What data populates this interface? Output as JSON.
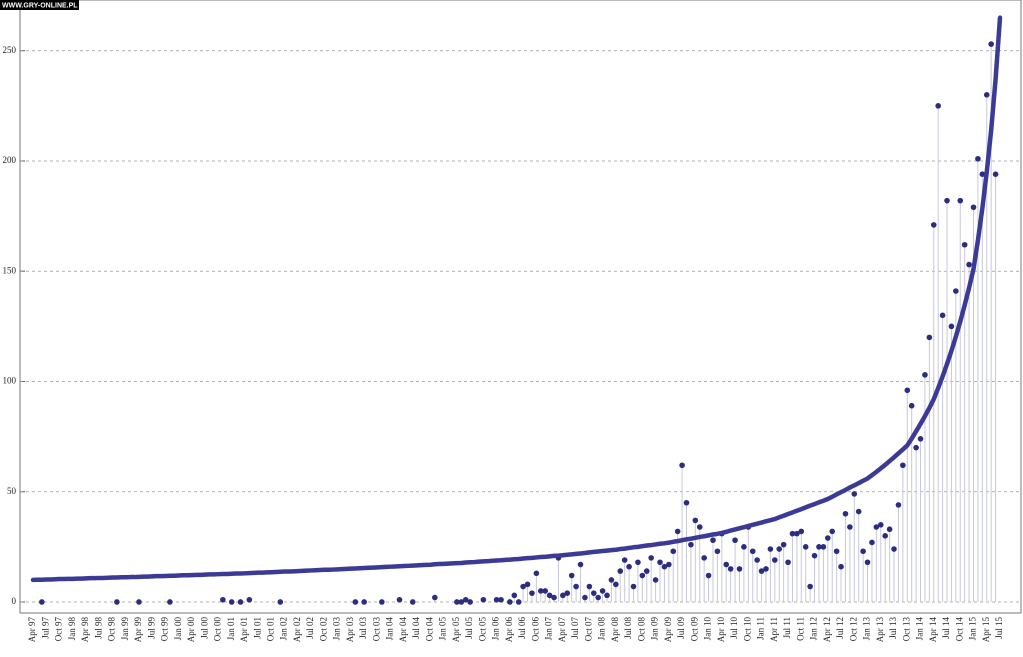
{
  "watermark": "WWW.GRY-ONLINE.PL",
  "chart_data": {
    "type": "line",
    "categories": [
      "Apr 97",
      null,
      null,
      "Jul 97",
      null,
      null,
      "Oct 97",
      null,
      null,
      "Jan 98",
      null,
      null,
      "Apr 98",
      null,
      null,
      "Jul 98",
      null,
      null,
      "Oct 98",
      null,
      null,
      "Jan 99",
      null,
      null,
      "Apr 99",
      null,
      null,
      "Jul 99",
      null,
      null,
      "Oct 99",
      null,
      null,
      "Jan 00",
      null,
      null,
      "Apr 00",
      null,
      null,
      "Jul 00",
      null,
      null,
      "Oct 00",
      null,
      null,
      "Jan 01",
      null,
      null,
      "Apr 01",
      null,
      null,
      "Jul 01",
      null,
      null,
      "Oct 01",
      null,
      null,
      "Jan 02",
      null,
      null,
      "Apr 02",
      null,
      null,
      "Jul 02",
      null,
      null,
      "Oct 02",
      null,
      null,
      "Jan 03",
      null,
      null,
      "Apr 03",
      null,
      null,
      "Jul 03",
      null,
      null,
      "Oct 03",
      null,
      null,
      "Jan 04",
      null,
      null,
      "Apr 04",
      null,
      null,
      "Jul 04",
      null,
      null,
      "Oct 04",
      null,
      null,
      "Jan 05",
      null,
      null,
      "Apr 05",
      null,
      null,
      "Jul 05",
      null,
      null,
      "Oct 05",
      null,
      null,
      "Jan 06",
      null,
      null,
      "Apr 06",
      null,
      null,
      "Jul 06",
      null,
      null,
      "Oct 06",
      null,
      null,
      "Jan 07",
      null,
      null,
      "Apr 07",
      null,
      null,
      "Jul 07",
      null,
      null,
      "Oct 07",
      null,
      null,
      "Jan 08",
      null,
      null,
      "Apr 08",
      null,
      null,
      "Jul 08",
      null,
      null,
      "Oct 08",
      null,
      null,
      "Jan 09",
      null,
      null,
      "Apr 09",
      null,
      null,
      "Jul 09",
      null,
      null,
      "Oct 09",
      null,
      null,
      "Jan 10",
      null,
      null,
      "Apr 10",
      null,
      null,
      "Jul 10",
      null,
      null,
      "Oct 10",
      null,
      null,
      "Jan 11",
      null,
      null,
      "Apr 11",
      null,
      null,
      "Jul 11",
      null,
      null,
      "Oct 11",
      null,
      null,
      "Jan 12",
      null,
      null,
      "Apr 12",
      null,
      null,
      "Jul 12",
      null,
      null,
      "Oct 12",
      null,
      null,
      "Jan 13",
      null,
      null,
      "Apr 13",
      null,
      null,
      "Jul 13",
      null,
      null,
      "Oct 13",
      null,
      null,
      "Jan 14",
      null,
      null,
      "Apr 14",
      null,
      null,
      "Jul 14",
      null,
      null,
      "Oct 14",
      null,
      null,
      "Jan 15",
      null,
      null,
      "Apr 15",
      null,
      null,
      "Jul 15"
    ],
    "series": [
      {
        "type": "stem",
        "color": "#2d2d7f",
        "values": [
          null,
          null,
          0,
          null,
          null,
          null,
          null,
          null,
          null,
          null,
          null,
          null,
          null,
          null,
          null,
          null,
          null,
          null,
          null,
          0,
          null,
          null,
          null,
          null,
          0,
          null,
          null,
          null,
          null,
          null,
          null,
          0,
          null,
          null,
          null,
          null,
          null,
          null,
          null,
          null,
          null,
          null,
          null,
          1,
          null,
          0,
          null,
          0,
          null,
          1,
          null,
          null,
          null,
          null,
          null,
          null,
          0,
          null,
          null,
          null,
          null,
          null,
          null,
          null,
          null,
          null,
          null,
          null,
          null,
          null,
          null,
          null,
          null,
          0,
          null,
          0,
          null,
          null,
          null,
          0,
          null,
          null,
          null,
          1,
          null,
          null,
          0,
          null,
          null,
          null,
          null,
          2,
          null,
          null,
          null,
          null,
          0,
          0,
          1,
          0,
          null,
          null,
          1,
          null,
          null,
          1,
          1,
          null,
          0,
          3,
          0,
          7,
          8,
          4,
          13,
          5,
          5,
          3,
          2,
          20,
          3,
          4,
          12,
          7,
          17,
          2,
          7,
          4,
          2,
          5,
          3,
          10,
          8,
          14,
          19,
          16,
          7,
          18,
          12,
          14,
          20,
          10,
          18,
          16,
          17,
          23,
          32,
          62,
          45,
          26,
          37,
          34,
          20,
          12,
          28,
          23,
          31,
          17,
          15,
          28,
          15,
          25,
          34,
          23,
          19,
          14,
          15,
          24,
          19,
          24,
          26,
          18,
          31,
          31,
          32,
          25,
          7,
          21,
          25,
          25,
          29,
          32,
          23,
          16,
          40,
          34,
          49,
          41,
          23,
          18,
          27,
          34,
          35,
          30,
          33,
          24,
          44,
          62,
          96,
          89,
          70,
          74,
          103,
          120,
          171,
          225,
          130,
          182,
          125,
          141,
          182,
          162,
          153,
          179,
          201,
          194,
          230,
          253,
          194,
          null
        ]
      },
      {
        "type": "line",
        "color": "#3b3b97",
        "values": [
          10.0,
          10.1,
          10.1,
          10.2,
          10.2,
          10.3,
          10.4,
          10.4,
          10.5,
          10.5,
          10.6,
          10.6,
          10.7,
          10.8,
          10.8,
          10.9,
          10.9,
          11.0,
          11.1,
          11.1,
          11.2,
          11.2,
          11.3,
          11.3,
          11.4,
          11.5,
          11.5,
          11.6,
          11.7,
          11.7,
          11.8,
          11.9,
          11.9,
          12.0,
          12.1,
          12.1,
          12.2,
          12.3,
          12.3,
          12.4,
          12.5,
          12.5,
          12.6,
          12.7,
          12.7,
          12.8,
          12.9,
          12.9,
          13.0,
          13.1,
          13.2,
          13.3,
          13.3,
          13.4,
          13.5,
          13.6,
          13.7,
          13.8,
          13.8,
          13.9,
          14.0,
          14.1,
          14.2,
          14.3,
          14.4,
          14.5,
          14.6,
          14.6,
          14.7,
          14.8,
          14.9,
          15.0,
          15.1,
          15.2,
          15.3,
          15.4,
          15.5,
          15.6,
          15.7,
          15.8,
          15.9,
          16.0,
          16.1,
          16.2,
          16.3,
          16.4,
          16.5,
          16.6,
          16.7,
          16.8,
          16.9,
          17.1,
          17.2,
          17.3,
          17.4,
          17.5,
          17.6,
          17.7,
          17.9,
          18.0,
          18.1,
          18.3,
          18.4,
          18.5,
          18.7,
          18.8,
          18.9,
          19.1,
          19.2,
          19.4,
          19.5,
          19.7,
          19.9,
          20.0,
          20.2,
          20.4,
          20.5,
          20.7,
          20.9,
          21.0,
          21.2,
          21.4,
          21.6,
          21.8,
          22.0,
          22.2,
          22.5,
          22.7,
          22.9,
          23.1,
          23.3,
          23.5,
          23.7,
          24.0,
          24.2,
          24.5,
          24.8,
          25.0,
          25.3,
          25.6,
          25.8,
          26.1,
          26.4,
          26.6,
          26.9,
          27.3,
          27.6,
          28.0,
          28.4,
          28.7,
          29.1,
          29.5,
          29.8,
          30.2,
          30.6,
          30.9,
          31.3,
          31.8,
          32.4,
          32.9,
          33.4,
          33.9,
          34.5,
          35.0,
          35.5,
          36.0,
          36.6,
          37.1,
          37.6,
          38.4,
          39.1,
          39.9,
          40.6,
          41.4,
          42.1,
          42.9,
          43.7,
          44.4,
          45.2,
          45.9,
          46.7,
          47.7,
          48.8,
          49.8,
          50.8,
          51.9,
          52.9,
          53.9,
          55.0,
          56.0,
          57.5,
          59.0,
          60.6,
          62.2,
          63.9,
          65.6,
          67.4,
          69.2,
          71.0,
          74.1,
          77.4,
          80.8,
          84.3,
          88.0,
          92.0,
          97.0,
          102.3,
          107.9,
          113.9,
          120.3,
          127.2,
          134.6,
          142.5,
          151.0,
          164.0,
          178.5,
          195.0,
          214.0,
          237.0,
          265.0
        ]
      }
    ],
    "ylim": [
      -5,
      273
    ],
    "yticks": [
      0,
      50,
      100,
      150,
      200,
      250
    ],
    "grid": true
  }
}
